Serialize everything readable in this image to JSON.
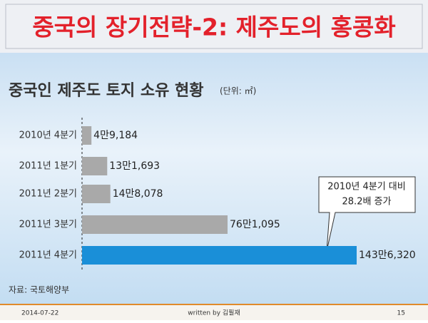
{
  "slide_title": "중국의 장기전략-2: 제주도의 홍콩화",
  "chart_data": {
    "type": "hbar",
    "title": "중국인 제주도 토지 소유 현황",
    "unit": "(단위: ㎡)",
    "categories": [
      "2010년 4분기",
      "2011년 1분기",
      "2011년 2분기",
      "2011년 3분기",
      "2011년 4분기"
    ],
    "values": [
      49184,
      131693,
      148078,
      761095,
      1436320
    ],
    "value_labels": [
      "4만9,184",
      "13만1,693",
      "14만8,078",
      "76만1,095",
      "143만6,320"
    ],
    "colors": [
      "#a9a9a9",
      "#a9a9a9",
      "#a9a9a9",
      "#a9a9a9",
      "#1a8fd8"
    ],
    "annotation": [
      "2010년 4분기 대비",
      "28.2배 증가"
    ],
    "source": "자료: 국토해양부"
  },
  "footer": {
    "date": "2014-07-22",
    "author": "written by 김필재",
    "page": "15"
  }
}
